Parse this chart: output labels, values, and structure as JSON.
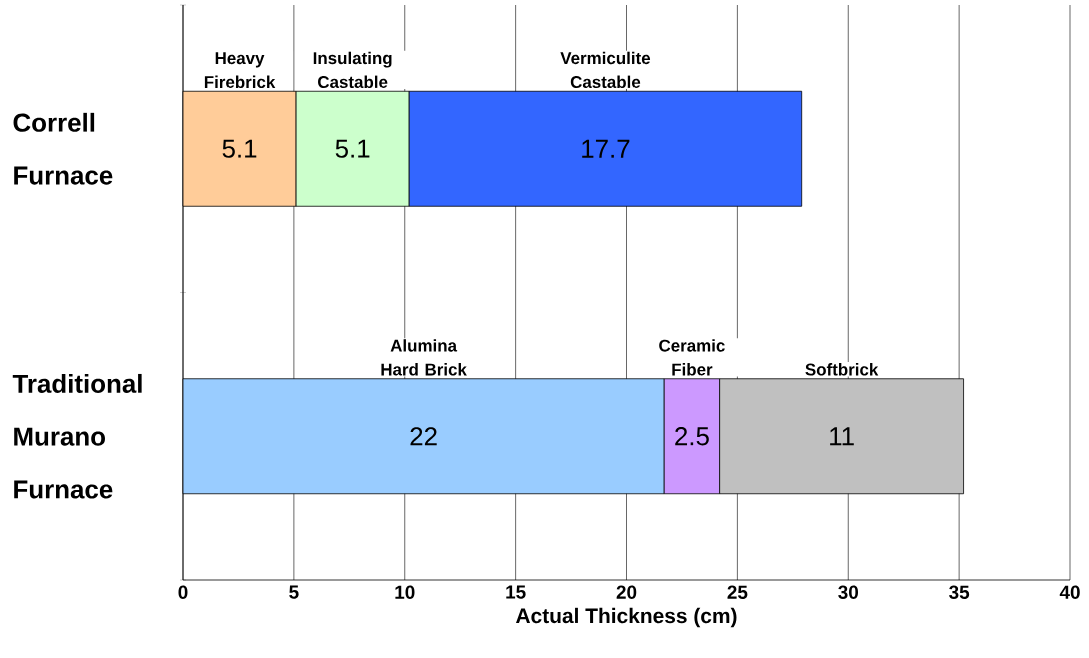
{
  "chart_data": {
    "type": "bar",
    "orientation": "horizontal",
    "stacked": true,
    "categories": [
      "Correll Furnace",
      "Traditional Murano Furnace"
    ],
    "xlabel": "Actual Thickness (cm)",
    "xlim": [
      0,
      40
    ],
    "xticks": [
      0,
      5,
      10,
      15,
      20,
      25,
      30,
      35,
      40
    ],
    "grid": "x",
    "series": [
      {
        "name": "Heavy Firebrick",
        "color": "#ffcc99",
        "values": [
          5.1,
          null
        ],
        "value_labels": [
          "5.1",
          null
        ]
      },
      {
        "name": "Insulating Castable",
        "color": "#ccffcc",
        "values": [
          5.1,
          null
        ],
        "value_labels": [
          "5.1",
          null
        ]
      },
      {
        "name": "Vermiculite Castable",
        "color": "#3366ff",
        "values": [
          17.7,
          null
        ],
        "value_labels": [
          "17.7",
          null
        ]
      },
      {
        "name": "Alumina Hard Brick",
        "color": "#99ccff",
        "values": [
          null,
          21.7
        ],
        "value_labels": [
          null,
          "22"
        ]
      },
      {
        "name": "Ceramic Fiber",
        "color": "#cc99ff",
        "values": [
          null,
          2.5
        ],
        "value_labels": [
          null,
          "2.5"
        ]
      },
      {
        "name": "Softbrick",
        "color": "#c0c0c0",
        "values": [
          null,
          11
        ],
        "value_labels": [
          null,
          "11"
        ]
      }
    ]
  }
}
